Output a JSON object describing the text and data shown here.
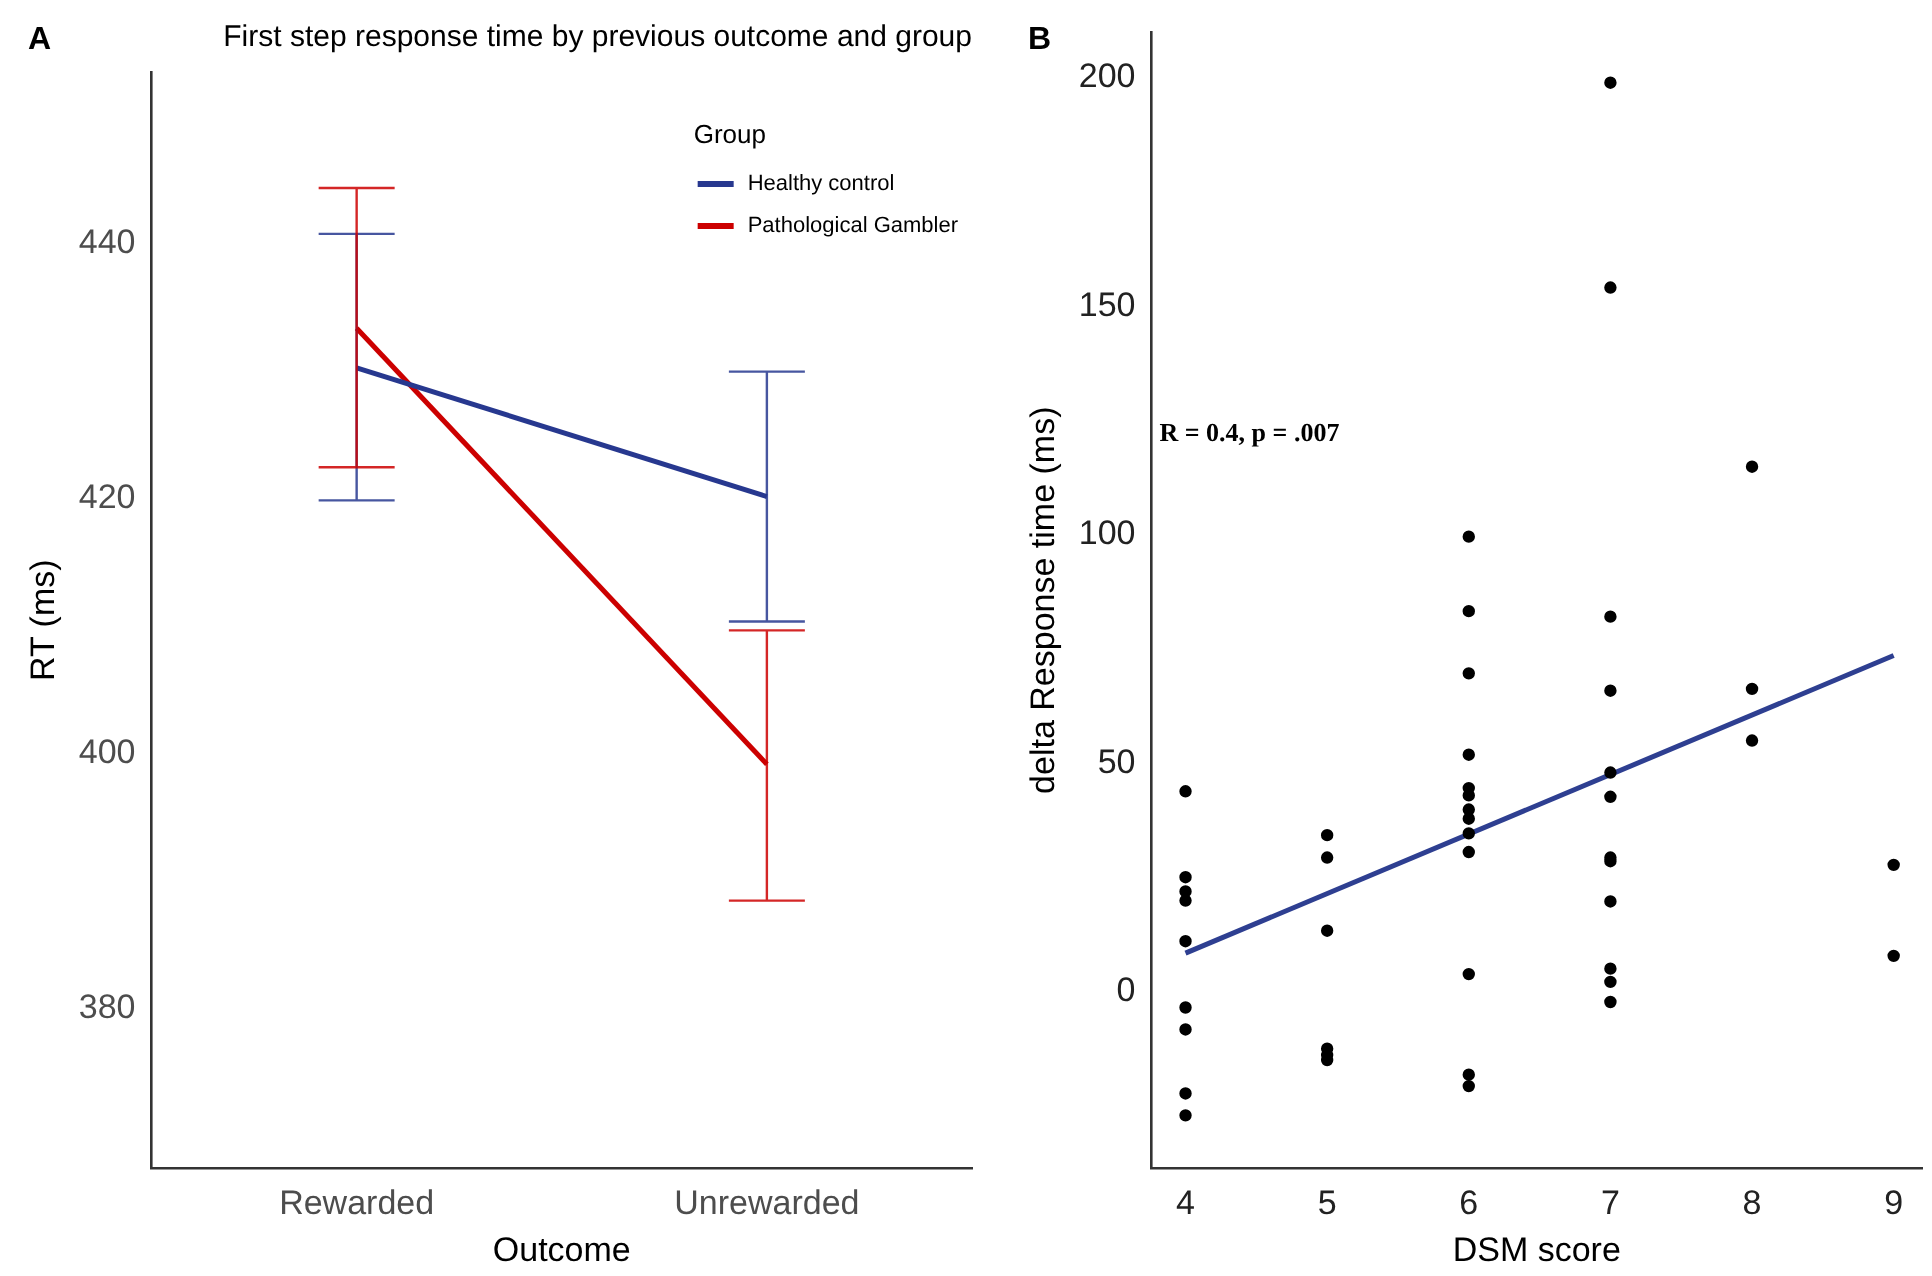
{
  "chart_data": [
    {
      "type": "line",
      "title": "First step response time by previous outcome and group",
      "xlabel": "Outcome",
      "ylabel": "RT (ms)",
      "legend_title": "Group",
      "legend": "top right",
      "marker": "none",
      "annotations": [
        "A"
      ],
      "categories": [
        "Rewarded",
        "Unrewarded"
      ],
      "ylim": [
        367.5,
        453.5
      ],
      "yticks": [
        380,
        400,
        420,
        440
      ],
      "series": [
        {
          "name": "Healthy control",
          "color": "#27388f",
          "values": [
            430.3,
            420.2
          ],
          "errors": [
            [
              419.9,
              440.8
            ],
            [
              410.4,
              430.0
            ]
          ]
        },
        {
          "name": "Pathological Gambler",
          "color": "#cc0000",
          "values": [
            433.4,
            399.2
          ],
          "errors": [
            [
              422.5,
              444.4
            ],
            [
              388.5,
              409.7
            ]
          ]
        }
      ]
    },
    {
      "type": "scatter",
      "xlabel": "DSM score",
      "ylabel": "delta Response time (ms)",
      "annotations": [
        "B",
        "R = 0.4, p = .007"
      ],
      "xlim": [
        3.76,
        9.2
      ],
      "xticks": [
        4,
        5,
        6,
        7,
        8,
        9
      ],
      "ylim": [
        -38.6,
        210
      ],
      "yticks": [
        0,
        50,
        100,
        150,
        200
      ],
      "series": [
        {
          "color": "#000000",
          "marker": "circle",
          "x": [
            4,
            4,
            4,
            4,
            4,
            4,
            4,
            4,
            4,
            5,
            5,
            5,
            5,
            5,
            5,
            6,
            6,
            6,
            6,
            6,
            6,
            6,
            6,
            6,
            6,
            6,
            6,
            6,
            7,
            7,
            7,
            7,
            7,
            7,
            7,
            7,
            7,
            7,
            7,
            7,
            8,
            8,
            8,
            9,
            9
          ],
          "values": [
            43.9,
            25.1,
            22.0,
            20.0,
            11.1,
            -3.4,
            -8.2,
            -22.2,
            -27.0,
            34.3,
            29.4,
            13.4,
            -12.4,
            -13.8,
            -14.9,
            99.6,
            83.3,
            69.7,
            51.9,
            44.6,
            43.0,
            39.9,
            37.9,
            34.7,
            30.6,
            3.9,
            -18.1,
            -20.6,
            198.9,
            154.1,
            82.1,
            65.9,
            48.0,
            42.7,
            29.4,
            28.6,
            19.8,
            5.1,
            2.2,
            -2.2,
            114.9,
            66.3,
            55.0,
            27.8,
            7.9
          ]
        },
        {
          "type": "line",
          "color": "#2e3f91",
          "marker": "none",
          "x": [
            4,
            9
          ],
          "values": [
            8.5,
            73.6
          ]
        }
      ]
    }
  ]
}
